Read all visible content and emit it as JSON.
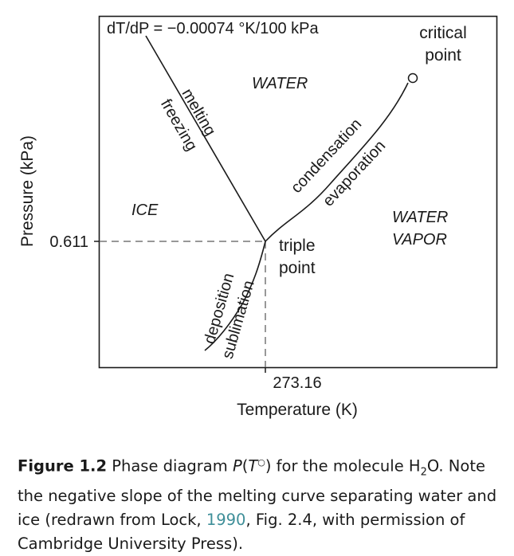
{
  "diagram": {
    "formula": "dT/dP = −0.00074 °K/100 kPa",
    "critical_point_line1": "critical",
    "critical_point_line2": "point",
    "triple_point_line1": "triple",
    "triple_point_line2": "point",
    "region_water": "WATER",
    "region_ice": "ICE",
    "region_vapor_line1": "WATER",
    "region_vapor_line2": "VAPOR",
    "melting": "melting",
    "freezing": "freezing",
    "condensation": "condensation",
    "evaporation": "evaporation",
    "deposition": "deposition",
    "sublimation": "sublimation",
    "y_tick": "0.611",
    "x_tick": "273.16",
    "y_axis_label": "Pressure (kPa)",
    "x_axis_label": "Temperature (K)"
  },
  "caption": {
    "figure_label": "Figure 1.2",
    "part1": " Phase diagram ",
    "p_symbol": "P",
    "paren_open": "(",
    "t_symbol": "T",
    "t_sup": "○",
    "paren_close": ")",
    "part2": " for the molecule H",
    "h2o_sub": "2",
    "part3": "O. Note the negative slope of the melting curve separating water and ice (redrawn from Lock, ",
    "citation_year": "1990",
    "part4": ", Fig. 2.4, with permission of Cambridge University Press)."
  }
}
